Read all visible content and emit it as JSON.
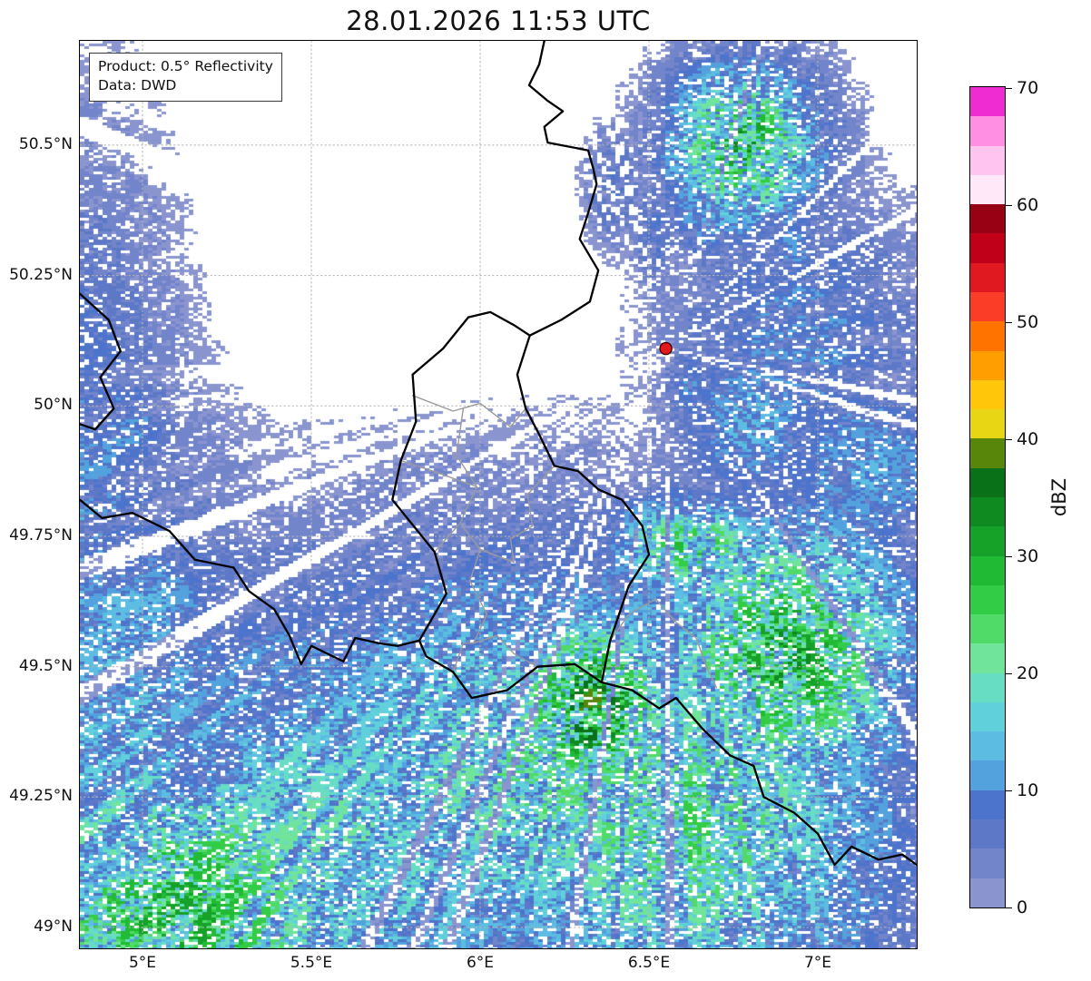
{
  "title": "28.01.2026 11:53 UTC",
  "info_box": {
    "product": "Product: 0.5° Reflectivity",
    "source": "Data: DWD"
  },
  "map": {
    "extent": {
      "lon_min": 4.8145,
      "lon_max": 7.293,
      "lat_min": 48.96,
      "lat_max": 50.7
    },
    "lat_ticks": [
      {
        "value": 50.5,
        "label": "50.5°N"
      },
      {
        "value": 50.25,
        "label": "50.25°N"
      },
      {
        "value": 50.0,
        "label": "50°N"
      },
      {
        "value": 49.75,
        "label": "49.75°N"
      },
      {
        "value": 49.5,
        "label": "49.5°N"
      },
      {
        "value": 49.25,
        "label": "49.25°N"
      },
      {
        "value": 49.0,
        "label": "49°N"
      }
    ],
    "lon_ticks": [
      {
        "value": 5.0,
        "label": "5°E"
      },
      {
        "value": 5.5,
        "label": "5.5°E"
      },
      {
        "value": 6.0,
        "label": "6°E"
      },
      {
        "value": 6.5,
        "label": "6.5°E"
      },
      {
        "value": 7.0,
        "label": "7°E"
      }
    ],
    "marker": {
      "lon": 6.55,
      "lat": 50.11,
      "color": "#e31a1c"
    }
  },
  "colorbar": {
    "unit_label": "dBZ",
    "min": 0,
    "max": 70,
    "step": 2.5,
    "tick_values": [
      0,
      10,
      20,
      30,
      40,
      50,
      60,
      70
    ],
    "tick_labels": [
      "0",
      "10",
      "20",
      "30",
      "40",
      "50",
      "60",
      "70"
    ],
    "colors": [
      "#8a94cf",
      "#7285cb",
      "#5c78c6",
      "#4d74cc",
      "#53a2dd",
      "#5cbce2",
      "#60d0da",
      "#67dec4",
      "#6fe49a",
      "#50da68",
      "#33cc47",
      "#21ba35",
      "#16a229",
      "#0e8a20",
      "#097117",
      "#57860a",
      "#e8d513",
      "#ffc60a",
      "#ff9e00",
      "#ff7300",
      "#fb3c26",
      "#e0181f",
      "#c00018",
      "#980013",
      "#ffe9f9",
      "#ffc4ef",
      "#ff8fe3",
      "#ee2cd2"
    ]
  }
}
